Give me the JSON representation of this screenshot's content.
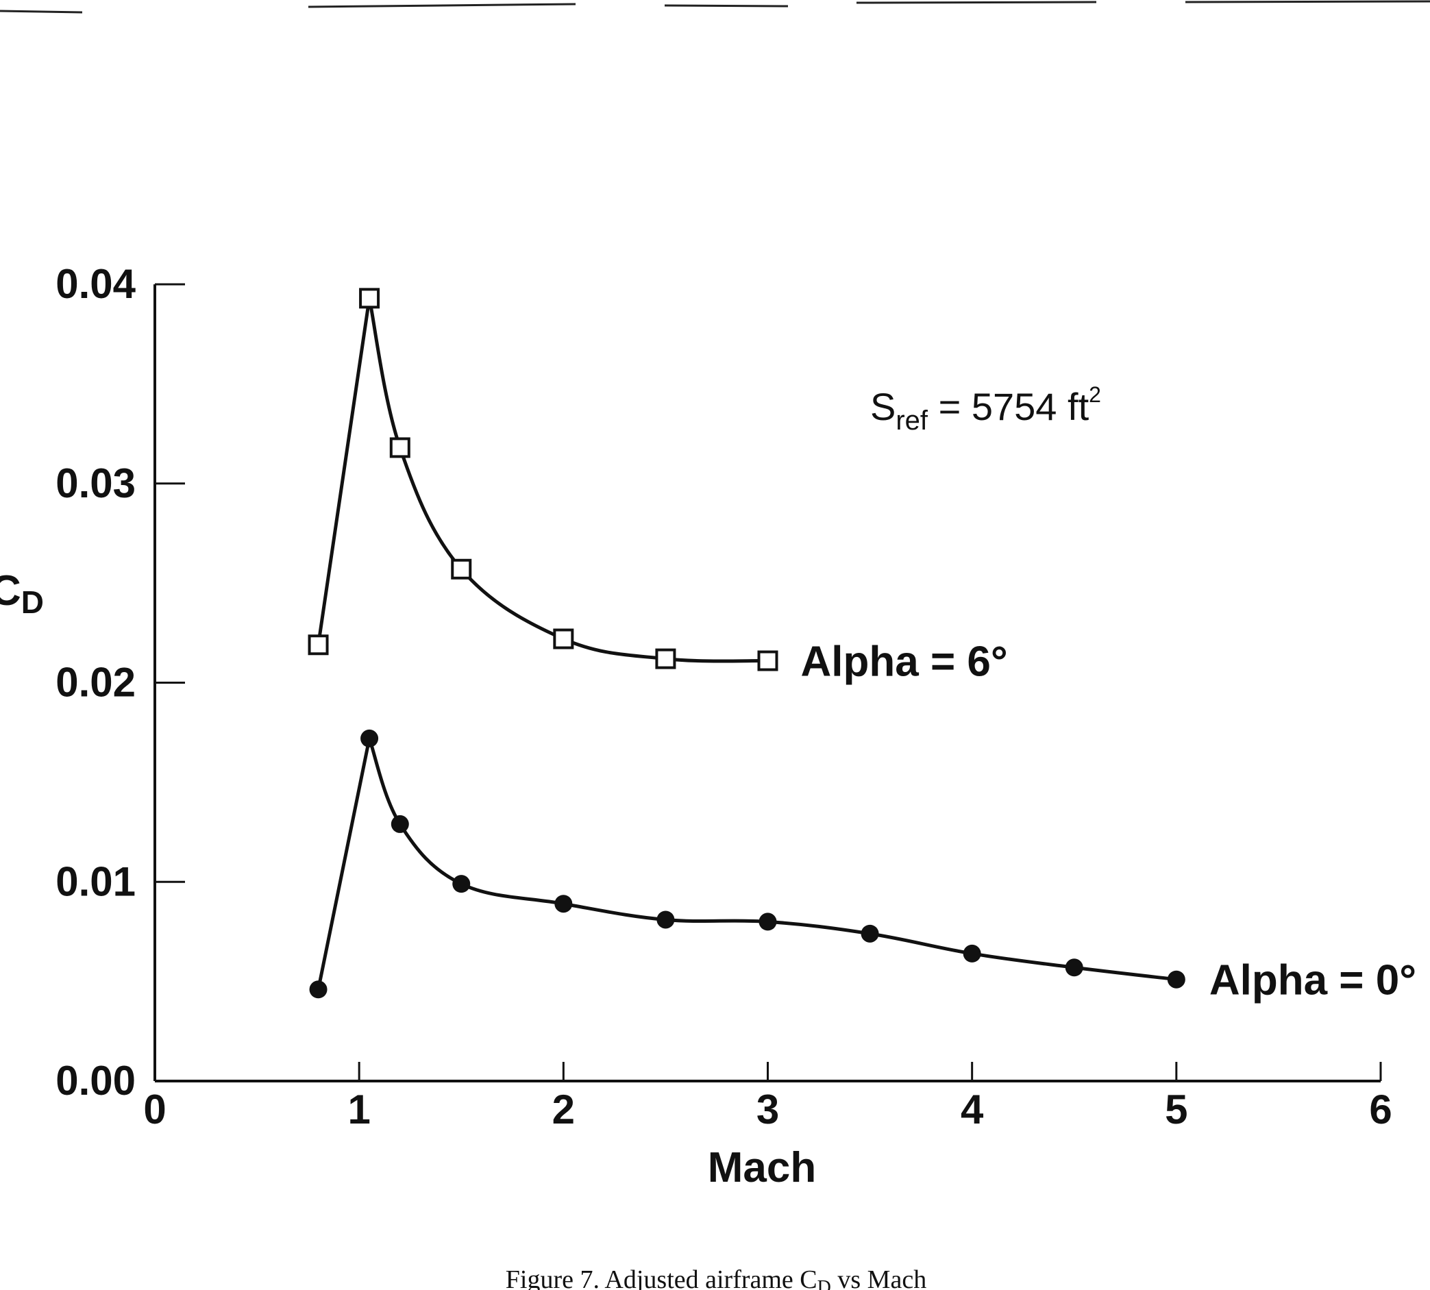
{
  "chart_data": {
    "type": "line",
    "title": "",
    "xlabel": "Mach",
    "ylabel": "C",
    "ylabel_sub": "D",
    "xlim": [
      0,
      6
    ],
    "ylim": [
      0.0,
      0.04
    ],
    "x_ticks": [
      "0",
      "1",
      "2",
      "3",
      "4",
      "5",
      "6"
    ],
    "y_ticks": [
      "0.00",
      "0.01",
      "0.02",
      "0.03",
      "0.04"
    ],
    "grid": false,
    "series": [
      {
        "name": "Alpha = 6°",
        "marker": "open-square",
        "x": [
          0.8,
          1.05,
          1.2,
          1.5,
          2.0,
          2.5,
          3.0
        ],
        "y": [
          0.0219,
          0.0393,
          0.0318,
          0.0257,
          0.0222,
          0.0212,
          0.0211
        ]
      },
      {
        "name": "Alpha = 0°",
        "marker": "filled-circle",
        "x": [
          0.8,
          1.05,
          1.2,
          1.5,
          2.0,
          2.5,
          3.0,
          3.5,
          4.0,
          4.5,
          5.0
        ],
        "y": [
          0.0046,
          0.0172,
          0.0129,
          0.0099,
          0.0089,
          0.0081,
          0.008,
          0.0074,
          0.0064,
          0.0057,
          0.0051
        ]
      }
    ],
    "annotation": {
      "main": "S",
      "sub": "ref",
      "rest": " = 5754 ft",
      "sup": "2"
    }
  },
  "caption": "Figure 7. Adjusted airframe C",
  "caption_sub": "D",
  "caption_rest": " vs Mach"
}
